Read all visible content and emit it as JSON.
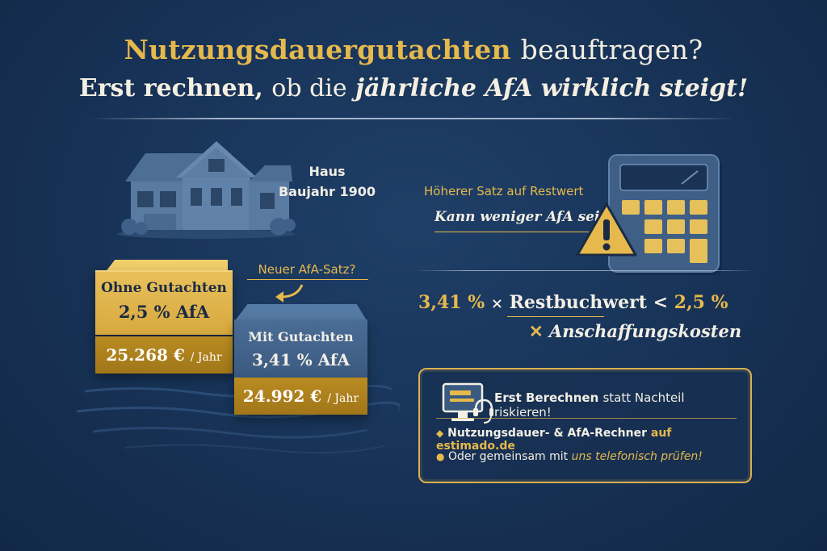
{
  "header": {
    "title_gold": "Nutzungsdauergutachten",
    "title_white": "beauftragen?",
    "subtitle_bold": "Erst rechnen,",
    "subtitle_normal": "ob die",
    "subtitle_italic": "jährliche AfA wirklich steigt!"
  },
  "house": {
    "label_line1": "Haus",
    "label_line2": "Baujahr 1900",
    "icon": "house-icon"
  },
  "comparison": {
    "arrow_label": "Neuer AfA-Satz?",
    "ohne": {
      "label": "Ohne Gutachten",
      "rate": "2,5 % AfA",
      "amount": "25.268 €",
      "unit": "/ Jahr"
    },
    "mit": {
      "label": "Mit Gutachten",
      "rate": "3,41 % AfA",
      "amount": "24.992 €",
      "unit": "/ Jahr"
    }
  },
  "warning": {
    "line1": "Höherer Satz auf Restwert",
    "line2": "Kann weniger AfA sein!",
    "icon": "warning-icon"
  },
  "formula": {
    "rate_new": "3,41 %",
    "times": "×",
    "restbuchwert": "Restbuchwert",
    "less_than": "<",
    "rate_old": "2,5 %",
    "times2": "✕",
    "anschaffungskosten": "Anschaffungskosten"
  },
  "cta": {
    "heading_bold": "Erst Berechnen",
    "heading_normal": "statt Nachteil riskieren!",
    "bullet1_text": "Nutzungsdauer- & AfA-Rechner",
    "bullet1_link": "auf estimado.de",
    "bullet2_text": "Oder gemeinsam mit",
    "bullet2_link": "uns telefonisch prüfen!",
    "icon": "monitor-headset-icon"
  },
  "colors": {
    "background": "#173256",
    "gold": "#e6b94c",
    "dark_gold": "#a07618",
    "card_blue": "#3b5a80",
    "text_light": "#f3efe5"
  }
}
